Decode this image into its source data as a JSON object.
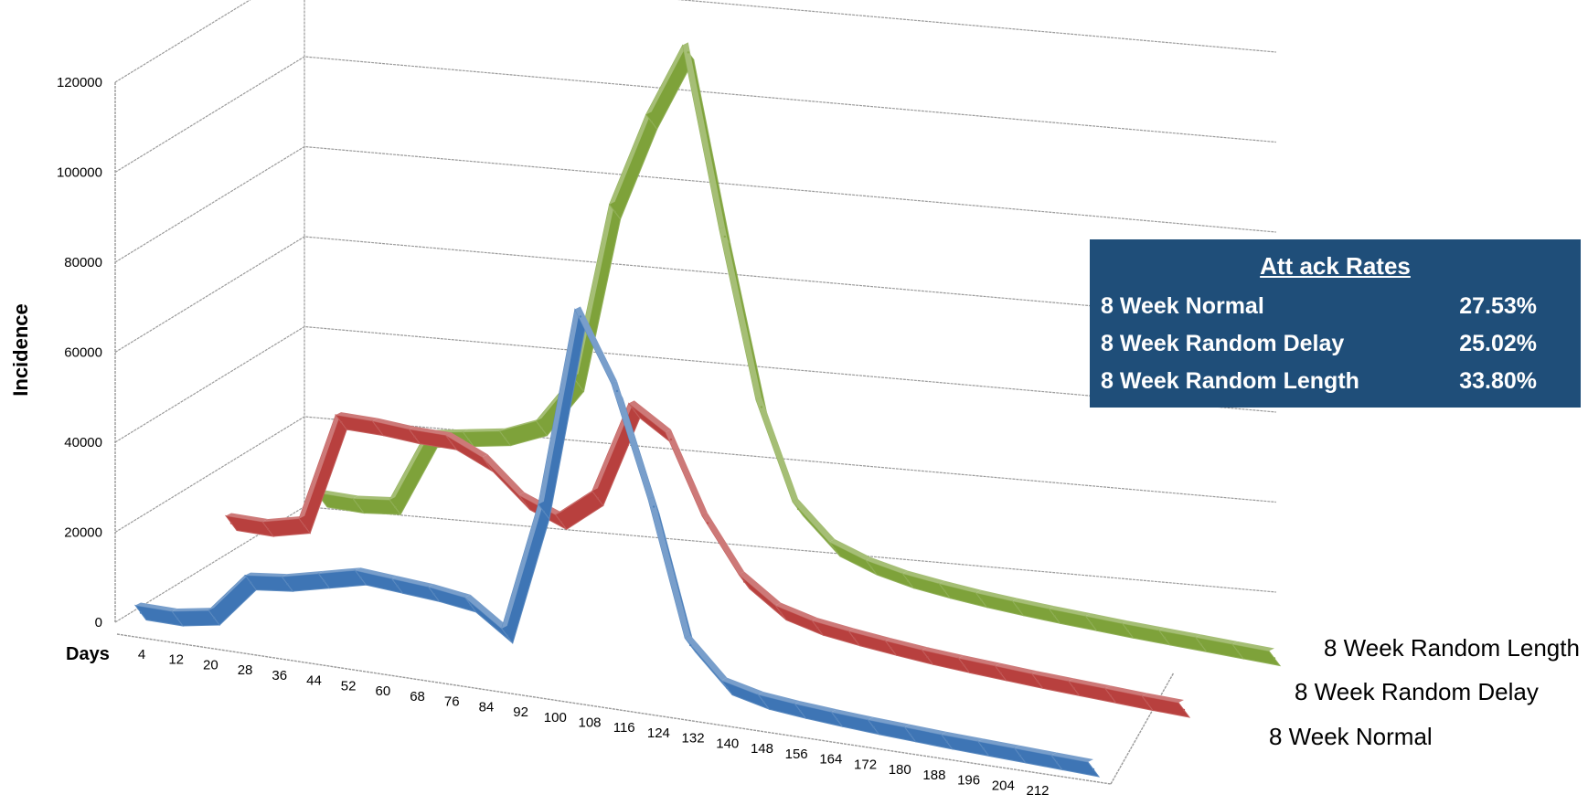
{
  "chart_data": {
    "type": "line",
    "title": "",
    "ylabel": "Incidence",
    "xlabel": "Days",
    "ylim": [
      0,
      120000
    ],
    "yticks": [
      "0",
      "20000",
      "40000",
      "60000",
      "80000",
      "100000",
      "120000"
    ],
    "x": [
      4,
      12,
      20,
      28,
      36,
      44,
      52,
      60,
      68,
      76,
      84,
      92,
      100,
      108,
      116,
      124,
      132,
      140,
      148,
      156,
      164,
      172,
      180,
      188,
      196,
      204,
      212
    ],
    "x_tick_labels": [
      "4",
      "12",
      "20",
      "28",
      "36",
      "44",
      "52",
      "60",
      "68",
      "76",
      "84",
      "92",
      "100",
      "108",
      "116",
      "124",
      "132",
      "140",
      "148",
      "156",
      "164",
      "172",
      "180",
      "188",
      "196",
      "204",
      "212"
    ],
    "series": [
      {
        "name": "8 Week Normal",
        "color": "#3e75b5",
        "values": [
          1500,
          1500,
          3000,
          12000,
          13000,
          15000,
          17000,
          16500,
          16000,
          15000,
          9500,
          38000,
          82000,
          67000,
          43000,
          14000,
          6000,
          4200,
          3500,
          3000,
          2600,
          2300,
          2000,
          1800,
          1600,
          1400,
          1200
        ]
      },
      {
        "name": "8 Week Random Delay",
        "color": "#b8403e",
        "values": [
          9000,
          9000,
          11000,
          35000,
          35000,
          34500,
          34500,
          31000,
          24000,
          21000,
          27500,
          48000,
          43000,
          26000,
          14500,
          9000,
          7000,
          6000,
          5200,
          4500,
          4000,
          3600,
          3200,
          2900,
          2600,
          2300,
          2100
        ]
      },
      {
        "name": "8 Week Random Length",
        "color": "#7ea23a",
        "values": [
          2000,
          2000,
          3000,
          19000,
          20500,
          22000,
          25500,
          36500,
          75500,
          96500,
          113000,
          74000,
          38000,
          17000,
          9500,
          6800,
          5200,
          4300,
          3600,
          3100,
          2700,
          2400,
          2100,
          1900,
          1700,
          1500,
          1300
        ]
      }
    ],
    "legend": "depth-axis labels at right",
    "grid": true
  },
  "attack_rates": {
    "title": "Att    ack Rates",
    "rows": [
      {
        "label": "8 Week Normal",
        "value": "27.53%"
      },
      {
        "label": "8 Week Random Delay",
        "value": "25.02%"
      },
      {
        "label": "8 Week Random Length",
        "value": "33.80%"
      }
    ],
    "background": "#1f4e79"
  }
}
